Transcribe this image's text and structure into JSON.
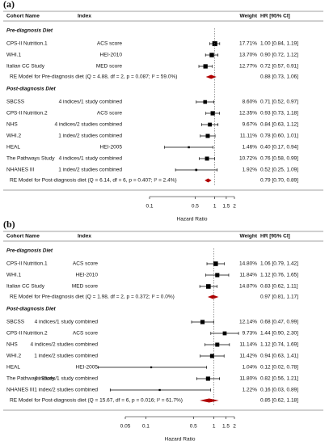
{
  "chart_data": [
    {
      "type": "forest",
      "panel_label": "(a)",
      "headers": {
        "cohort": "Cohort Name",
        "index": "Index",
        "weight": "Weight",
        "hr": "HR [95% CI]"
      },
      "log_scale": true,
      "xlim": [
        0.1,
        2
      ],
      "xticks": [
        0.1,
        0.5,
        1,
        1.5,
        2
      ],
      "xlabel": "Hazard Ratio",
      "reference": 1,
      "box_color": "#000000",
      "summary_color": "#b00000",
      "groups": [
        {
          "name": "Pre-diagnosis Diet",
          "studies": [
            {
              "cohort": "CPS-II Nutrition.1",
              "index": "ACS score",
              "weight": 17.71,
              "weight_label": "17.71%",
              "hr": 1,
              "lower": 0.84,
              "upper": 1.19,
              "label": "1.00 [0.84, 1.19]"
            },
            {
              "cohort": "WHI.1",
              "index": "HEI-2010",
              "weight": 13.7,
              "weight_label": "13.70%",
              "hr": 0.9,
              "lower": 0.72,
              "upper": 1.12,
              "label": "0.90 [0.72, 1.12]"
            },
            {
              "cohort": "Italian CC Study",
              "index": "MED score",
              "weight": 12.77,
              "weight_label": "12.77%",
              "hr": 0.72,
              "lower": 0.57,
              "upper": 0.91,
              "label": "0.72 [0.57, 0.91]"
            }
          ],
          "summary": {
            "name": "RE Model for Pre-diagnosis diet (Q = 4.88, df = 2, p = 0.087; I² = 59.0%)",
            "hr": 0.88,
            "lower": 0.73,
            "upper": 1.06,
            "label": "0.88 [0.73, 1.06]"
          }
        },
        {
          "name": "Post-diagnosis Diet",
          "studies": [
            {
              "cohort": "SBCSS",
              "index": "4 indices/1 study combined",
              "weight": 8.6,
              "weight_label": "8.60%",
              "hr": 0.71,
              "lower": 0.52,
              "upper": 0.97,
              "label": "0.71 [0.52, 0.97]"
            },
            {
              "cohort": "CPS-II Nutrition.2",
              "index": "ACS score",
              "weight": 12.35,
              "weight_label": "12.35%",
              "hr": 0.93,
              "lower": 0.73,
              "upper": 1.18,
              "label": "0.93 [0.73, 1.18]"
            },
            {
              "cohort": "NHS",
              "index": "4 indices/2 studies combined",
              "weight": 9.67,
              "weight_label": "9.67%",
              "hr": 0.84,
              "lower": 0.63,
              "upper": 1.12,
              "label": "0.84 [0.63, 1.12]"
            },
            {
              "cohort": "WHI.2",
              "index": "1 index/2 studies combined",
              "weight": 11.11,
              "weight_label": "11.11%",
              "hr": 0.78,
              "lower": 0.6,
              "upper": 1.01,
              "label": "0.78 [0.60, 1.01]"
            },
            {
              "cohort": "HEAL",
              "index": "HEI-2005",
              "weight": 1.46,
              "weight_label": "1.46%",
              "hr": 0.4,
              "lower": 0.17,
              "upper": 0.94,
              "label": "0.40 [0.17, 0.94]"
            },
            {
              "cohort": "The Pathways Study",
              "index": "4 indices/1 study combined",
              "weight": 10.72,
              "weight_label": "10.72%",
              "hr": 0.76,
              "lower": 0.58,
              "upper": 0.99,
              "label": "0.76 [0.58, 0.99]"
            },
            {
              "cohort": "NHANES III",
              "index": "1 index/2 studies combined",
              "weight": 1.92,
              "weight_label": "1.92%",
              "hr": 0.52,
              "lower": 0.25,
              "upper": 1.09,
              "label": "0.52 [0.25, 1.09]"
            }
          ],
          "summary": {
            "name": "RE Model for Post-diagnosis diet (Q = 6.14, df = 6, p = 0.407; I² = 2.4%)",
            "hr": 0.79,
            "lower": 0.7,
            "upper": 0.89,
            "label": "0.79 [0.70, 0.89]"
          }
        }
      ]
    },
    {
      "type": "forest",
      "panel_label": "(b)",
      "headers": {
        "cohort": "Cohort Name",
        "index": "Index",
        "weight": "Weight",
        "hr": "HR [95% CI]"
      },
      "log_scale": true,
      "xlim": [
        0.05,
        2
      ],
      "xticks": [
        0.05,
        0.1,
        0.5,
        1,
        1.5,
        2
      ],
      "xlabel": "Hazard Ratio",
      "reference": 1,
      "box_color": "#000000",
      "summary_color": "#b00000",
      "groups": [
        {
          "name": "Pre-diagnosis Diet",
          "studies": [
            {
              "cohort": "CPS-II Nutrition.1",
              "index": "ACS score",
              "weight": 14.8,
              "weight_label": "14.80%",
              "hr": 1.06,
              "lower": 0.79,
              "upper": 1.42,
              "label": "1.06 [0.79, 1.42]"
            },
            {
              "cohort": "WHI.1",
              "index": "HEI-2010",
              "weight": 11.84,
              "weight_label": "11.84%",
              "hr": 1.12,
              "lower": 0.76,
              "upper": 1.65,
              "label": "1.12 [0.76, 1.65]"
            },
            {
              "cohort": "Italian CC Study",
              "index": "MED score",
              "weight": 14.87,
              "weight_label": "14.87%",
              "hr": 0.83,
              "lower": 0.62,
              "upper": 1.11,
              "label": "0.83 [0.62, 1.11]"
            }
          ],
          "summary": {
            "name": "RE Model for Pre-diagnosis diet (Q = 1.98, df = 2, p = 0.372; I² = 0.0%)",
            "hr": 0.97,
            "lower": 0.81,
            "upper": 1.17,
            "label": "0.97 [0.81, 1.17]"
          }
        },
        {
          "name": "Post-diagnosis Diet",
          "studies": [
            {
              "cohort": "SBCSS",
              "index": "4 indices/1 study combined",
              "weight": 12.14,
              "weight_label": "12.14%",
              "hr": 0.68,
              "lower": 0.47,
              "upper": 0.99,
              "label": "0.68 [0.47, 0.99]"
            },
            {
              "cohort": "CPS-II Nutrition.2",
              "index": "ACS score",
              "weight": 9.73,
              "weight_label": "9.73%",
              "hr": 1.44,
              "lower": 0.9,
              "upper": 2.3,
              "label": "1.44 [0.90, 2.30]"
            },
            {
              "cohort": "NHS",
              "index": "4 indices/2 studies combined",
              "weight": 11.14,
              "weight_label": "11.14%",
              "hr": 1.12,
              "lower": 0.74,
              "upper": 1.69,
              "label": "1.12 [0.74, 1.69]"
            },
            {
              "cohort": "WHI.2",
              "index": "1 index/2 studies combined",
              "weight": 11.42,
              "weight_label": "11.42%",
              "hr": 0.94,
              "lower": 0.63,
              "upper": 1.41,
              "label": "0.94 [0.63, 1.41]"
            },
            {
              "cohort": "HEAL",
              "index": "HEI-2005",
              "weight": 1.04,
              "weight_label": "1.04%",
              "hr": 0.12,
              "lower": 0.02,
              "upper": 0.78,
              "label": "0.12 [0.02, 0.78]"
            },
            {
              "cohort": "The Pathways Study",
              "index": "4 indices/1 study combined",
              "weight": 11.8,
              "weight_label": "11.80%",
              "hr": 0.82,
              "lower": 0.56,
              "upper": 1.21,
              "label": "0.82 [0.56, 1.21]"
            },
            {
              "cohort": "NHANES III",
              "index": "1 index/2 studies combined",
              "weight": 1.22,
              "weight_label": "1.22%",
              "hr": 0.16,
              "lower": 0.03,
              "upper": 0.89,
              "label": "0.16 [0.03, 0.89]"
            }
          ],
          "summary": {
            "name": "RE Model for Post-diagnosis diet (Q = 15.67, df = 6, p = 0.016; I² = 61.7%)",
            "hr": 0.85,
            "lower": 0.62,
            "upper": 1.18,
            "label": "0.85 [0.62, 1.18]"
          }
        }
      ]
    }
  ]
}
